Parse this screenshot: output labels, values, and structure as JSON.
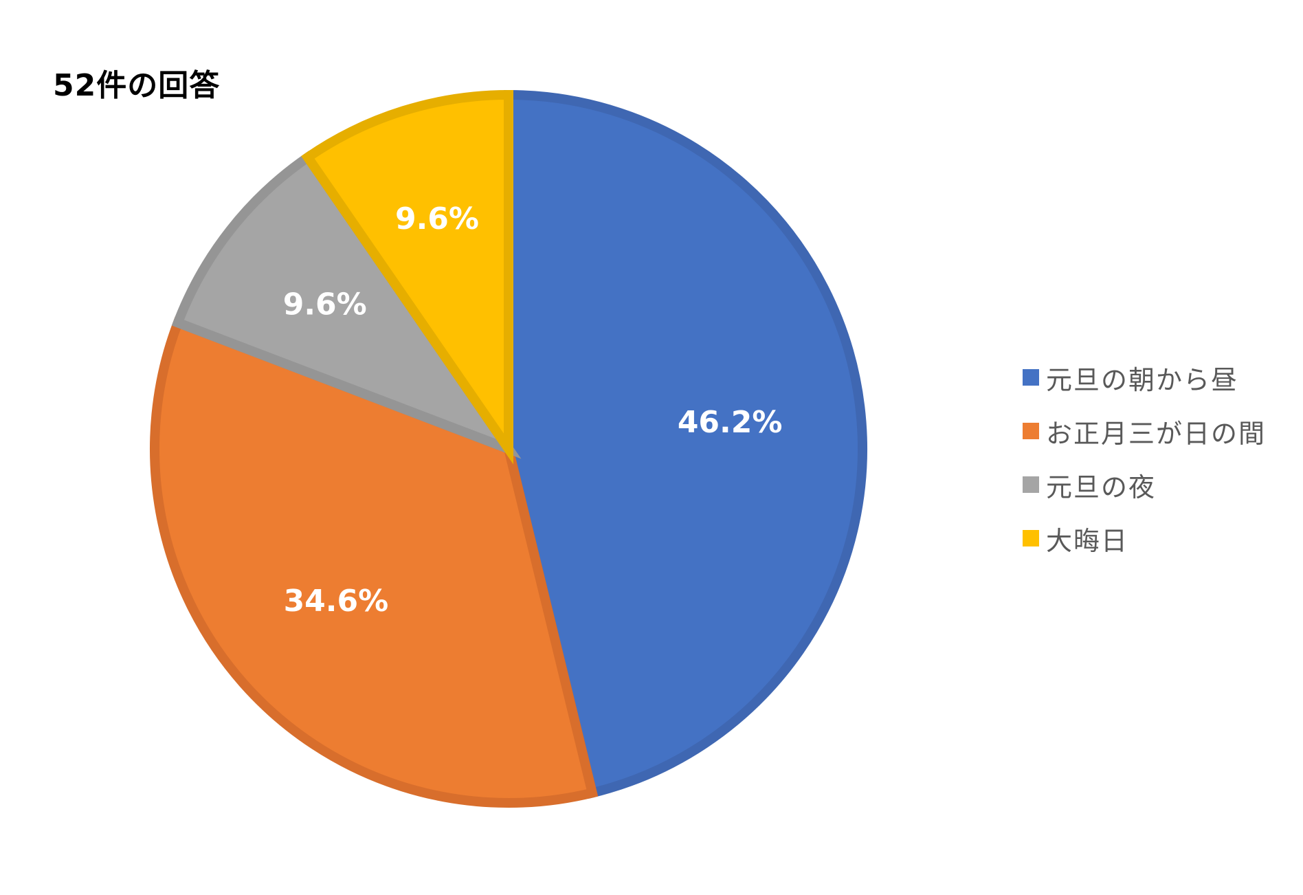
{
  "chart_data": {
    "type": "pie",
    "title": "52件の回答",
    "start_angle_deg": 0,
    "direction": "clockwise",
    "slices": [
      {
        "label": "元旦の朝から昼",
        "value": 46.2,
        "display": "46.2%",
        "color": "#4472C4",
        "edge": "#3F67B2"
      },
      {
        "label": "お正月三が日の間",
        "value": 34.6,
        "display": "34.6%",
        "color": "#ED7D31",
        "edge": "#D86E2C"
      },
      {
        "label": "元旦の夜",
        "value": 9.6,
        "display": "9.6%",
        "color": "#A5A5A5",
        "edge": "#959595"
      },
      {
        "label": "大晦日",
        "value": 9.6,
        "display": "9.6%",
        "color": "#FFC000",
        "edge": "#E6AE00"
      }
    ],
    "legend_position": "right"
  }
}
